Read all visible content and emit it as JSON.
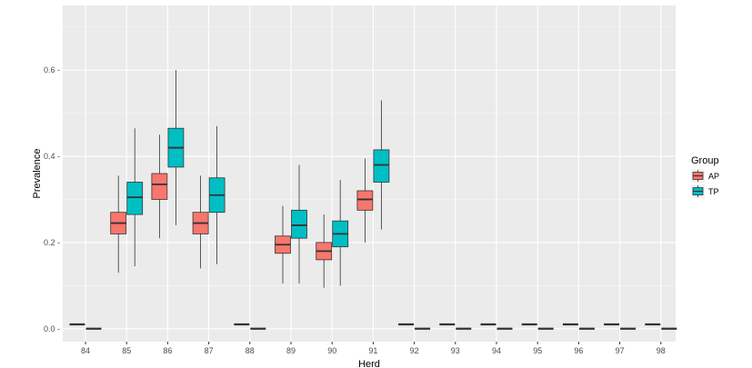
{
  "colors": {
    "AP": "#F8766D",
    "TP": "#00BFC4",
    "panel": "#EBEBEB",
    "grid_major": "#FFFFFF",
    "grid_minor": "#F5F5F5",
    "outline": "#333333"
  },
  "chart_data": {
    "type": "boxplot",
    "xlabel": "Herd",
    "ylabel": "Prevalence",
    "ylim": [
      -0.03,
      0.75
    ],
    "yticks": [
      0.0,
      0.2,
      0.4,
      0.6
    ],
    "ytick_labels": [
      "0.0 -",
      "0.2 -",
      "0.4 -",
      "0.6 -"
    ],
    "grid": true,
    "legend": {
      "title": "Group",
      "position": "right",
      "entries": [
        "AP",
        "TP"
      ]
    },
    "categories": [
      "84",
      "85",
      "86",
      "87",
      "88",
      "89",
      "90",
      "91",
      "92",
      "93",
      "94",
      "95",
      "96",
      "97",
      "98"
    ],
    "series": [
      {
        "name": "AP",
        "boxes": [
          {
            "min": 0.01,
            "q1": 0.01,
            "median": 0.01,
            "q3": 0.01,
            "max": 0.01
          },
          {
            "min": 0.13,
            "q1": 0.22,
            "median": 0.245,
            "q3": 0.27,
            "max": 0.355
          },
          {
            "min": 0.21,
            "q1": 0.3,
            "median": 0.335,
            "q3": 0.36,
            "max": 0.45
          },
          {
            "min": 0.14,
            "q1": 0.22,
            "median": 0.245,
            "q3": 0.27,
            "max": 0.355
          },
          {
            "min": 0.01,
            "q1": 0.01,
            "median": 0.01,
            "q3": 0.01,
            "max": 0.01
          },
          {
            "min": 0.105,
            "q1": 0.175,
            "median": 0.195,
            "q3": 0.215,
            "max": 0.285
          },
          {
            "min": 0.095,
            "q1": 0.16,
            "median": 0.18,
            "q3": 0.2,
            "max": 0.265
          },
          {
            "min": 0.2,
            "q1": 0.275,
            "median": 0.3,
            "q3": 0.32,
            "max": 0.395
          },
          {
            "min": 0.01,
            "q1": 0.01,
            "median": 0.01,
            "q3": 0.01,
            "max": 0.01
          },
          {
            "min": 0.01,
            "q1": 0.01,
            "median": 0.01,
            "q3": 0.01,
            "max": 0.01
          },
          {
            "min": 0.01,
            "q1": 0.01,
            "median": 0.01,
            "q3": 0.01,
            "max": 0.01
          },
          {
            "min": 0.01,
            "q1": 0.01,
            "median": 0.01,
            "q3": 0.01,
            "max": 0.01
          },
          {
            "min": 0.01,
            "q1": 0.01,
            "median": 0.01,
            "q3": 0.01,
            "max": 0.01
          },
          {
            "min": 0.01,
            "q1": 0.01,
            "median": 0.01,
            "q3": 0.01,
            "max": 0.01
          },
          {
            "min": 0.01,
            "q1": 0.01,
            "median": 0.01,
            "q3": 0.01,
            "max": 0.01
          }
        ]
      },
      {
        "name": "TP",
        "boxes": [
          {
            "min": 0.0,
            "q1": 0.0,
            "median": 0.0,
            "q3": 0.0,
            "max": 0.0
          },
          {
            "min": 0.145,
            "q1": 0.265,
            "median": 0.305,
            "q3": 0.34,
            "max": 0.465
          },
          {
            "min": 0.24,
            "q1": 0.375,
            "median": 0.42,
            "q3": 0.465,
            "max": 0.6
          },
          {
            "min": 0.15,
            "q1": 0.27,
            "median": 0.31,
            "q3": 0.35,
            "max": 0.47
          },
          {
            "min": 0.0,
            "q1": 0.0,
            "median": 0.0,
            "q3": 0.0,
            "max": 0.0
          },
          {
            "min": 0.105,
            "q1": 0.21,
            "median": 0.24,
            "q3": 0.275,
            "max": 0.38
          },
          {
            "min": 0.1,
            "q1": 0.19,
            "median": 0.22,
            "q3": 0.25,
            "max": 0.345
          },
          {
            "min": 0.23,
            "q1": 0.34,
            "median": 0.38,
            "q3": 0.415,
            "max": 0.53
          },
          {
            "min": 0.0,
            "q1": 0.0,
            "median": 0.0,
            "q3": 0.0,
            "max": 0.0
          },
          {
            "min": 0.0,
            "q1": 0.0,
            "median": 0.0,
            "q3": 0.0,
            "max": 0.0
          },
          {
            "min": 0.0,
            "q1": 0.0,
            "median": 0.0,
            "q3": 0.0,
            "max": 0.0
          },
          {
            "min": 0.0,
            "q1": 0.0,
            "median": 0.0,
            "q3": 0.0,
            "max": 0.0
          },
          {
            "min": 0.0,
            "q1": 0.0,
            "median": 0.0,
            "q3": 0.0,
            "max": 0.0
          },
          {
            "min": 0.0,
            "q1": 0.0,
            "median": 0.0,
            "q3": 0.0,
            "max": 0.0
          },
          {
            "min": 0.0,
            "q1": 0.0,
            "median": 0.0,
            "q3": 0.0,
            "max": 0.0
          }
        ]
      }
    ]
  }
}
